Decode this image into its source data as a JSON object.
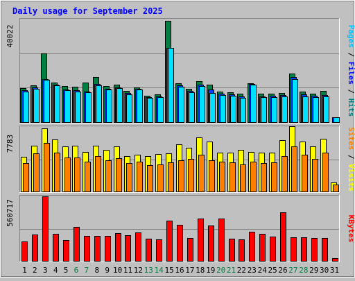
{
  "chart_data": [
    {
      "type": "bar",
      "title": "Daily usage for September 2025",
      "ylabel_max": "40022",
      "right_label": {
        "parts": [
          {
            "text": "Pages",
            "color": "#00c0ff"
          },
          {
            "text": " / ",
            "color": "#000000"
          },
          {
            "text": "Files",
            "color": "#0000ff"
          },
          {
            "text": " / ",
            "color": "#000000"
          },
          {
            "text": "Hits",
            "color": "#008080"
          }
        ]
      },
      "ylim": [
        0,
        40022
      ],
      "categories": [
        "1",
        "2",
        "3",
        "4",
        "5",
        "6",
        "7",
        "8",
        "9",
        "10",
        "11",
        "12",
        "13",
        "14",
        "15",
        "16",
        "17",
        "18",
        "19",
        "20",
        "21",
        "22",
        "23",
        "24",
        "25",
        "26",
        "27",
        "28",
        "29",
        "30",
        "31"
      ],
      "series": [
        {
          "name": "Hits",
          "color": "#008040",
          "values": [
            13200,
            14200,
            26800,
            15400,
            14100,
            13900,
            15500,
            17600,
            14000,
            14600,
            12200,
            13400,
            10300,
            10900,
            39500,
            15100,
            13100,
            15900,
            14600,
            11900,
            11700,
            11100,
            15100,
            11200,
            11200,
            11300,
            19000,
            11800,
            11000,
            12100,
            0
          ]
        },
        {
          "name": "Files",
          "color": "#0040ff",
          "values": [
            12500,
            13400,
            16900,
            14600,
            12800,
            12400,
            12000,
            14800,
            13100,
            13500,
            11300,
            13000,
            9800,
            9900,
            29000,
            14200,
            12200,
            14500,
            12800,
            11200,
            10900,
            10100,
            14900,
            10100,
            10200,
            10600,
            17500,
            10800,
            10200,
            10600,
            2000
          ]
        },
        {
          "name": "Pages",
          "color": "#00e0ff",
          "values": [
            12000,
            13000,
            16600,
            14300,
            12500,
            11900,
            11700,
            14400,
            12600,
            13200,
            10700,
            12700,
            9400,
            9600,
            28900,
            13800,
            11700,
            14100,
            11400,
            10500,
            10400,
            9500,
            14700,
            9600,
            9700,
            9900,
            16800,
            10100,
            9600,
            10100,
            1900
          ]
        }
      ]
    },
    {
      "type": "bar",
      "ylabel_max": "7783",
      "right_label": {
        "parts": [
          {
            "text": "Sites",
            "color": "#ff8000"
          },
          {
            "text": " / ",
            "color": "#000000"
          },
          {
            "text": "Visits",
            "color": "#ffff00"
          }
        ]
      },
      "ylim": [
        0,
        7783
      ],
      "categories": [
        "1",
        "2",
        "3",
        "4",
        "5",
        "6",
        "7",
        "8",
        "9",
        "10",
        "11",
        "12",
        "13",
        "14",
        "15",
        "16",
        "17",
        "18",
        "19",
        "20",
        "21",
        "22",
        "23",
        "24",
        "25",
        "26",
        "27",
        "28",
        "29",
        "30",
        "31"
      ],
      "series": [
        {
          "name": "Visits",
          "color": "#ffff00",
          "values": [
            4200,
            5500,
            7600,
            6300,
            5400,
            5500,
            4800,
            5500,
            5000,
            5400,
            4300,
            4400,
            4300,
            4500,
            4600,
            5700,
            5300,
            6500,
            6000,
            4700,
            4700,
            5000,
            4800,
            4700,
            4700,
            6200,
            7900,
            6000,
            5400,
            6400,
            1100
          ]
        },
        {
          "name": "Sites",
          "color": "#ff8000",
          "values": [
            3400,
            4600,
            5900,
            4700,
            4100,
            4100,
            3600,
            4300,
            3800,
            4000,
            3400,
            3600,
            3200,
            3300,
            3500,
            3800,
            3900,
            4400,
            3800,
            3600,
            3500,
            3300,
            3600,
            3400,
            3500,
            4300,
            5400,
            4400,
            3900,
            4700,
            800
          ]
        }
      ]
    },
    {
      "type": "bar",
      "ylabel_max": "560717",
      "right_label": {
        "parts": [
          {
            "text": "KBytes",
            "color": "#ff0000"
          }
        ]
      },
      "ylim": [
        0,
        560717
      ],
      "categories": [
        "1",
        "2",
        "3",
        "4",
        "5",
        "6",
        "7",
        "8",
        "9",
        "10",
        "11",
        "12",
        "13",
        "14",
        "15",
        "16",
        "17",
        "18",
        "19",
        "20",
        "21",
        "22",
        "23",
        "24",
        "25",
        "26",
        "27",
        "28",
        "29",
        "30",
        "31"
      ],
      "series": [
        {
          "name": "KBytes",
          "color": "#ff0000",
          "values": [
            170000,
            230000,
            560000,
            235000,
            180000,
            295000,
            215000,
            220000,
            215000,
            240000,
            225000,
            250000,
            195000,
            185000,
            350000,
            315000,
            200000,
            370000,
            305000,
            370000,
            195000,
            185000,
            255000,
            235000,
            210000,
            425000,
            205000,
            205000,
            200000,
            200000,
            22000
          ]
        }
      ]
    }
  ],
  "weekend_days": [
    "6",
    "7",
    "13",
    "14",
    "20",
    "21",
    "27",
    "28"
  ],
  "colors": {
    "background": "#c0c0c0",
    "title": "#0000ff",
    "weekday_label": "#000000",
    "weekend_label": "#008040",
    "grid": "#808080"
  }
}
